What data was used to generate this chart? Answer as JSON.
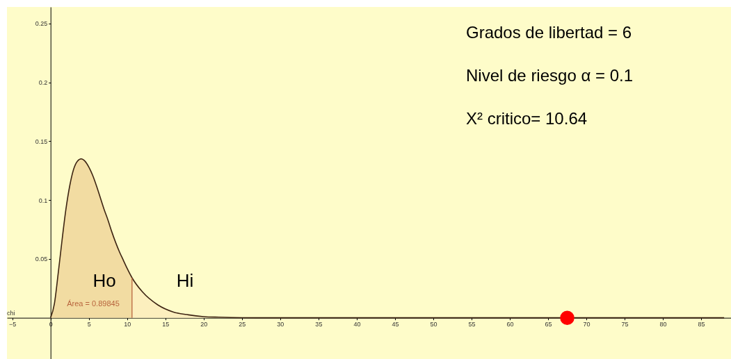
{
  "chart_data": {
    "type": "line",
    "xlabel": "chi",
    "xlim": [
      -5.7,
      88.9
    ],
    "ylim": [
      -0.035,
      0.264
    ],
    "xticks": [
      -5,
      0,
      5,
      10,
      15,
      20,
      25,
      30,
      35,
      40,
      45,
      50,
      55,
      60,
      65,
      70,
      75,
      80,
      85
    ],
    "yticks": [
      0.05,
      {
        "value": 0.1,
        "label": "0.1"
      },
      0.15,
      {
        "value": 0.2,
        "label": "0.2"
      },
      0.25
    ],
    "grid": false,
    "line_style": "solid",
    "series": [
      {
        "type": "area",
        "color": "#f2dca2",
        "x": [
          0,
          0.5,
          1,
          1.5,
          2,
          2.5,
          3,
          3.5,
          4,
          4.5,
          5,
          5.5,
          6,
          6.5,
          7,
          7.5,
          8,
          8.5,
          9,
          9.5,
          10,
          10.64
        ],
        "values": [
          0,
          0.012,
          0.038,
          0.066,
          0.092,
          0.112,
          0.126,
          0.133,
          0.135,
          0.133,
          0.128,
          0.121,
          0.112,
          0.102,
          0.092,
          0.083,
          0.073,
          0.064,
          0.056,
          0.049,
          0.042,
          0.034
        ]
      },
      {
        "type": "area",
        "color": "#fcefbe",
        "x": [
          10.64,
          12,
          14,
          16,
          18,
          20,
          22,
          25,
          30
        ],
        "values": [
          0.034,
          0.022,
          0.011,
          0.005,
          0.0025,
          0.001,
          0.0005,
          0.0001,
          0
        ]
      },
      {
        "color": "#3d2412",
        "x": [
          0,
          0.5,
          1,
          1.5,
          2,
          2.5,
          3,
          3.5,
          4,
          4.5,
          5,
          5.5,
          6,
          6.5,
          7,
          7.5,
          8,
          8.5,
          9,
          9.5,
          10,
          10.64,
          12,
          14,
          16,
          18,
          20,
          22,
          25,
          30,
          88
        ],
        "values": [
          0,
          0.012,
          0.038,
          0.066,
          0.092,
          0.112,
          0.126,
          0.133,
          0.135,
          0.133,
          0.128,
          0.121,
          0.112,
          0.102,
          0.092,
          0.083,
          0.073,
          0.064,
          0.056,
          0.049,
          0.042,
          0.034,
          0.022,
          0.011,
          0.005,
          0.0025,
          0.001,
          0.0005,
          0.0001,
          0,
          0
        ]
      },
      {
        "type": "scatter",
        "color": "#ff0000",
        "x": [
          67.5
        ],
        "values": [
          0
        ]
      }
    ],
    "ref_lines": [
      {
        "axis": "x",
        "value": 10.64,
        "color": "#b8653e"
      }
    ],
    "annotations": [
      "Grados de libertad = 6",
      "Nivel de riesgo α = 0.1",
      "X² critico= 10.64",
      "Ho",
      "Hi",
      "Área = 0.89845"
    ]
  }
}
